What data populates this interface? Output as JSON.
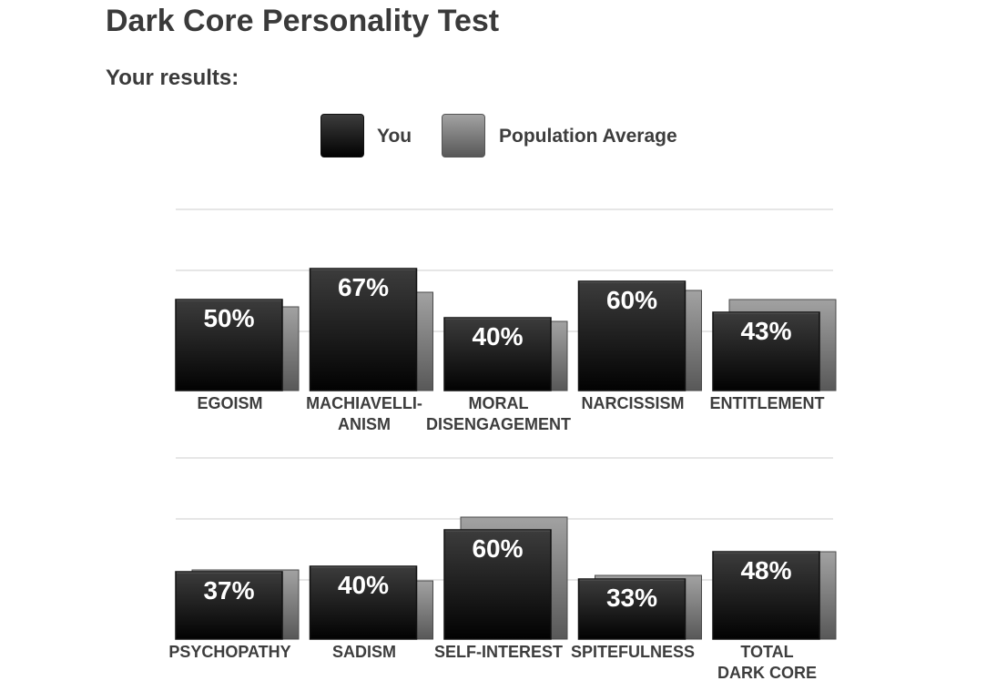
{
  "page": {
    "title": "Dark Core Personality Test",
    "subtitle": "Your results:"
  },
  "legend": {
    "you_label": "You",
    "population_label": "Population Average"
  },
  "colors": {
    "you_top": "#3c3c3c",
    "you_bottom": "#020202",
    "population_top": "#a2a2a2",
    "population_bottom": "#585858",
    "grid": "#e6e6e6",
    "label_text": "#3d3d3d"
  },
  "chart_data": [
    {
      "type": "bar",
      "categories": [
        [
          "EGOISM"
        ],
        [
          "MACHIAVELLI-",
          "ANISM"
        ],
        [
          "MORAL",
          "DISENGAGEMENT"
        ],
        [
          "NARCISSISM"
        ],
        [
          "ENTITLEMENT"
        ]
      ],
      "series": [
        {
          "name": "You",
          "values": [
            50,
            67,
            40,
            60,
            43
          ],
          "labels": [
            "50%",
            "67%",
            "40%",
            "60%",
            "43%"
          ]
        },
        {
          "name": "Population Average",
          "values": [
            46,
            54,
            38,
            55,
            50
          ]
        }
      ],
      "ylim": [
        0,
        100
      ],
      "grid": true
    },
    {
      "type": "bar",
      "categories": [
        [
          "PSYCHOPATHY"
        ],
        [
          "SADISM"
        ],
        [
          "SELF-INTEREST"
        ],
        [
          "SPITEFULNESS"
        ],
        [
          "TOTAL",
          "DARK CORE"
        ]
      ],
      "series": [
        {
          "name": "You",
          "values": [
            37,
            40,
            60,
            33,
            48
          ],
          "labels": [
            "37%",
            "40%",
            "60%",
            "33%",
            "48%"
          ]
        },
        {
          "name": "Population Average",
          "values": [
            38,
            32,
            67,
            35,
            48
          ]
        }
      ],
      "ylim": [
        0,
        100
      ],
      "grid": true
    }
  ]
}
